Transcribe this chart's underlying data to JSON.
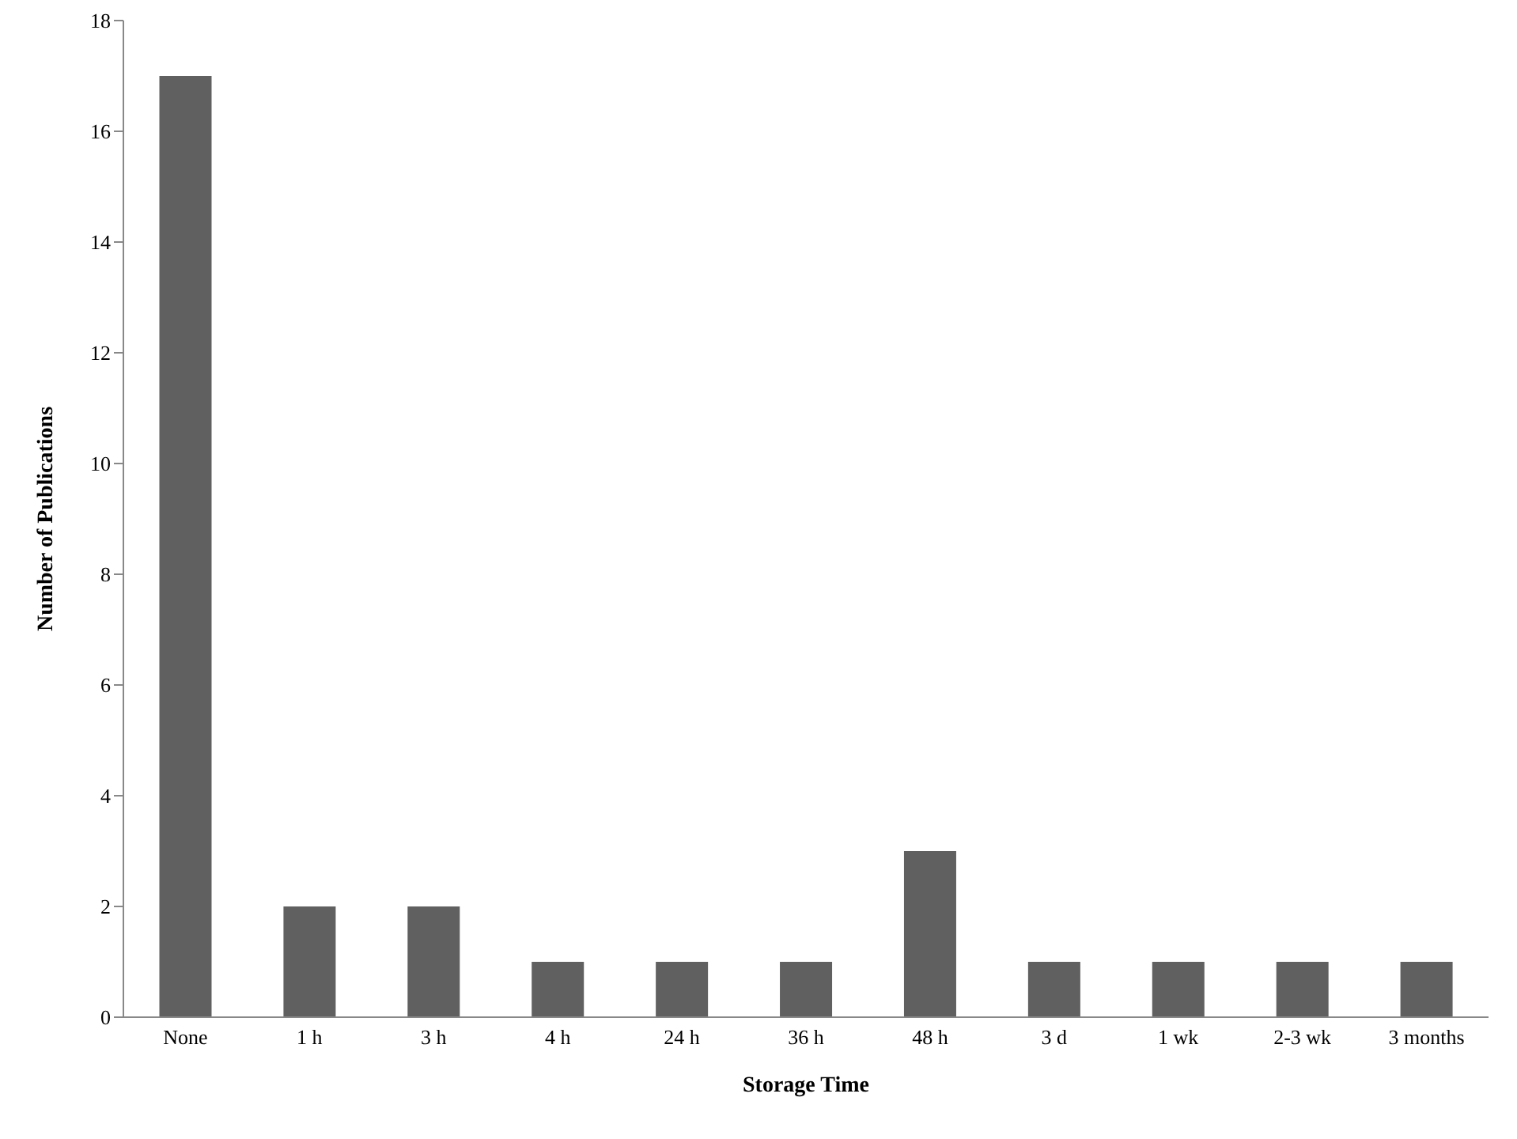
{
  "chart_data": {
    "type": "bar",
    "xlabel": "Storage Time",
    "ylabel": "Number of Publications",
    "categories": [
      "None",
      "1 h",
      "3 h",
      "4 h",
      "24 h",
      "36 h",
      "48 h",
      "3 d",
      "1 wk",
      "2-3 wk",
      "3 months"
    ],
    "values": [
      17,
      2,
      2,
      1,
      1,
      1,
      3,
      1,
      1,
      1,
      1
    ],
    "color": "#606060",
    "ylim": [
      0,
      18
    ],
    "yticks": [
      0,
      2,
      4,
      6,
      8,
      10,
      12,
      14,
      16,
      18
    ],
    "grid": false,
    "legend": false
  }
}
